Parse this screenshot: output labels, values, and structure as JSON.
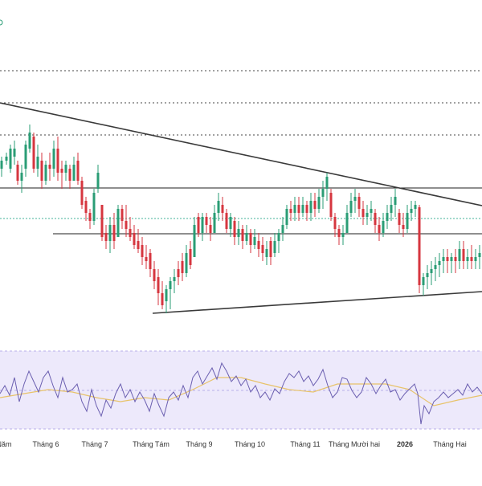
{
  "chart_data": {
    "type": "candlestick",
    "price_range": [
      0,
      600
    ],
    "colors": {
      "up": "#2a9d75",
      "down": "#d6363f",
      "trendline": "#3a3a3a",
      "level": "#1f1f1f",
      "dotted": "#444444",
      "rsi_line": "#6b5fb0",
      "rsi_ma": "#e8c36a",
      "rsi_bg": "#ede9fb",
      "rsi_border": "#b8aee8",
      "teal_dotted": "#44b39a"
    },
    "x_axis": {
      "ticks": [
        {
          "label": "Năm",
          "x": 5,
          "bold": false
        },
        {
          "label": "Tháng 6",
          "x": 57,
          "bold": false
        },
        {
          "label": "Tháng 7",
          "x": 118,
          "bold": false
        },
        {
          "label": "Tháng Tám",
          "x": 188,
          "bold": false
        },
        {
          "label": "Tháng 9",
          "x": 248,
          "bold": false
        },
        {
          "label": "Tháng 10",
          "x": 311,
          "bold": false
        },
        {
          "label": "Tháng 11",
          "x": 380,
          "bold": false
        },
        {
          "label": "Tháng Mười hai",
          "x": 441,
          "bold": false
        },
        {
          "label": "2026",
          "x": 504,
          "bold": true
        },
        {
          "label": "Tháng Hai",
          "x": 560,
          "bold": false
        }
      ]
    },
    "candles": [
      [
        2,
        195,
        220,
        210,
        200
      ],
      [
        8,
        190,
        205,
        200,
        195
      ],
      [
        13,
        180,
        215,
        210,
        185
      ],
      [
        18,
        175,
        205,
        195,
        185
      ],
      [
        22,
        200,
        230,
        205,
        225
      ],
      [
        27,
        205,
        240,
        225,
        215
      ],
      [
        32,
        175,
        220,
        210,
        180
      ],
      [
        37,
        155,
        190,
        185,
        165
      ],
      [
        42,
        165,
        215,
        170,
        210
      ],
      [
        47,
        180,
        220,
        210,
        195
      ],
      [
        52,
        190,
        235,
        200,
        225
      ],
      [
        57,
        200,
        230,
        225,
        205
      ],
      [
        62,
        190,
        225,
        205,
        210
      ],
      [
        67,
        175,
        220,
        210,
        185
      ],
      [
        72,
        170,
        225,
        185,
        215
      ],
      [
        77,
        200,
        235,
        210,
        215
      ],
      [
        82,
        200,
        225,
        215,
        205
      ],
      [
        87,
        205,
        235,
        210,
        225
      ],
      [
        92,
        195,
        225,
        225,
        205
      ],
      [
        97,
        190,
        230,
        200,
        225
      ],
      [
        102,
        220,
        260,
        225,
        255
      ],
      [
        107,
        245,
        275,
        250,
        265
      ],
      [
        112,
        260,
        285,
        265,
        275
      ],
      [
        117,
        235,
        280,
        275,
        240
      ],
      [
        122,
        205,
        240,
        235,
        215
      ],
      [
        127,
        255,
        300,
        255,
        295
      ],
      [
        132,
        280,
        310,
        290,
        300
      ],
      [
        137,
        270,
        315,
        300,
        280
      ],
      [
        142,
        265,
        310,
        280,
        300
      ],
      [
        147,
        255,
        295,
        295,
        260
      ],
      [
        152,
        255,
        285,
        260,
        275
      ],
      [
        157,
        255,
        295,
        275,
        285
      ],
      [
        162,
        270,
        300,
        285,
        295
      ],
      [
        167,
        280,
        310,
        290,
        305
      ],
      [
        172,
        285,
        315,
        300,
        310
      ],
      [
        177,
        295,
        330,
        305,
        320
      ],
      [
        182,
        305,
        335,
        320,
        325
      ],
      [
        187,
        310,
        345,
        315,
        335
      ],
      [
        192,
        325,
        360,
        335,
        350
      ],
      [
        197,
        335,
        380,
        345,
        365
      ],
      [
        202,
        350,
        385,
        365,
        380
      ],
      [
        207,
        355,
        390,
        375,
        360
      ],
      [
        212,
        345,
        385,
        360,
        350
      ],
      [
        217,
        335,
        365,
        350,
        345
      ],
      [
        222,
        325,
        355,
        335,
        345
      ],
      [
        227,
        315,
        350,
        325,
        340
      ],
      [
        232,
        305,
        345,
        340,
        315
      ],
      [
        237,
        300,
        335,
        310,
        330
      ],
      [
        242,
        270,
        320,
        320,
        280
      ],
      [
        247,
        265,
        295,
        270,
        290
      ],
      [
        252,
        265,
        300,
        290,
        270
      ],
      [
        257,
        265,
        290,
        270,
        280
      ],
      [
        262,
        270,
        300,
        280,
        290
      ],
      [
        267,
        255,
        290,
        290,
        265
      ],
      [
        272,
        240,
        275,
        265,
        250
      ],
      [
        277,
        245,
        275,
        255,
        265
      ],
      [
        282,
        260,
        290,
        265,
        285
      ],
      [
        287,
        265,
        295,
        285,
        270
      ],
      [
        292,
        270,
        305,
        275,
        295
      ],
      [
        297,
        275,
        305,
        295,
        285
      ],
      [
        302,
        280,
        310,
        285,
        300
      ],
      [
        307,
        280,
        305,
        300,
        290
      ],
      [
        312,
        285,
        315,
        290,
        305
      ],
      [
        317,
        285,
        310,
        305,
        295
      ],
      [
        322,
        290,
        320,
        300,
        310
      ],
      [
        327,
        295,
        325,
        305,
        315
      ],
      [
        332,
        300,
        330,
        320,
        310
      ],
      [
        337,
        295,
        330,
        300,
        320
      ],
      [
        342,
        290,
        320,
        315,
        300
      ],
      [
        347,
        285,
        315,
        300,
        290
      ],
      [
        352,
        270,
        300,
        290,
        280
      ],
      [
        357,
        255,
        285,
        280,
        260
      ],
      [
        362,
        250,
        275,
        260,
        265
      ],
      [
        367,
        245,
        275,
        265,
        255
      ],
      [
        372,
        245,
        275,
        255,
        265
      ],
      [
        377,
        245,
        270,
        265,
        255
      ],
      [
        382,
        250,
        275,
        255,
        265
      ],
      [
        387,
        240,
        275,
        265,
        250
      ],
      [
        392,
        240,
        270,
        250,
        260
      ],
      [
        397,
        235,
        265,
        260,
        245
      ],
      [
        402,
        225,
        260,
        245,
        235
      ],
      [
        407,
        215,
        250,
        235,
        220
      ],
      [
        412,
        235,
        275,
        240,
        270
      ],
      [
        417,
        265,
        295,
        270,
        285
      ],
      [
        422,
        280,
        305,
        285,
        295
      ],
      [
        427,
        280,
        305,
        295,
        290
      ],
      [
        432,
        255,
        290,
        290,
        265
      ],
      [
        437,
        240,
        270,
        265,
        250
      ],
      [
        442,
        235,
        265,
        250,
        245
      ],
      [
        447,
        240,
        270,
        245,
        260
      ],
      [
        452,
        250,
        280,
        260,
        270
      ],
      [
        457,
        255,
        280,
        270,
        265
      ],
      [
        462,
        250,
        275,
        265,
        260
      ],
      [
        467,
        260,
        290,
        265,
        280
      ],
      [
        472,
        270,
        300,
        280,
        290
      ],
      [
        477,
        265,
        295,
        290,
        275
      ],
      [
        482,
        255,
        285,
        275,
        265
      ],
      [
        487,
        245,
        275,
        265,
        255
      ],
      [
        492,
        235,
        270,
        255,
        245
      ],
      [
        497,
        260,
        290,
        265,
        280
      ],
      [
        502,
        265,
        295,
        280,
        285
      ],
      [
        507,
        255,
        290,
        285,
        265
      ],
      [
        512,
        250,
        275,
        265,
        260
      ],
      [
        517,
        250,
        270,
        260,
        255
      ],
      [
        522,
        255,
        365,
        258,
        355
      ],
      [
        527,
        340,
        368,
        355,
        345
      ],
      [
        532,
        330,
        360,
        345,
        340
      ],
      [
        537,
        325,
        355,
        340,
        335
      ],
      [
        542,
        320,
        350,
        335,
        330
      ],
      [
        547,
        315,
        345,
        330,
        325
      ],
      [
        552,
        310,
        340,
        325,
        320
      ],
      [
        557,
        310,
        340,
        320,
        325
      ],
      [
        562,
        315,
        340,
        325,
        320
      ],
      [
        567,
        310,
        340,
        320,
        325
      ],
      [
        572,
        300,
        335,
        325,
        310
      ],
      [
        577,
        300,
        335,
        310,
        325
      ],
      [
        582,
        310,
        335,
        325,
        320
      ],
      [
        587,
        305,
        335,
        320,
        325
      ],
      [
        592,
        310,
        335,
        325,
        320
      ],
      [
        597,
        305,
        335,
        320,
        315
      ]
    ],
    "rsi": {
      "levels": [
        "upper",
        "middle",
        "lower"
      ],
      "line": [
        [
          0,
          490
        ],
        [
          6,
          480
        ],
        [
          12,
          492
        ],
        [
          18,
          470
        ],
        [
          24,
          500
        ],
        [
          30,
          478
        ],
        [
          36,
          462
        ],
        [
          42,
          475
        ],
        [
          48,
          488
        ],
        [
          54,
          470
        ],
        [
          60,
          462
        ],
        [
          66,
          480
        ],
        [
          72,
          495
        ],
        [
          78,
          470
        ],
        [
          84,
          488
        ],
        [
          90,
          485
        ],
        [
          96,
          478
        ],
        [
          102,
          500
        ],
        [
          108,
          512
        ],
        [
          114,
          485
        ],
        [
          120,
          505
        ],
        [
          126,
          518
        ],
        [
          132,
          498
        ],
        [
          138,
          508
        ],
        [
          144,
          490
        ],
        [
          150,
          478
        ],
        [
          156,
          495
        ],
        [
          162,
          485
        ],
        [
          168,
          500
        ],
        [
          174,
          488
        ],
        [
          180,
          498
        ],
        [
          186,
          512
        ],
        [
          192,
          490
        ],
        [
          198,
          505
        ],
        [
          204,
          518
        ],
        [
          210,
          495
        ],
        [
          216,
          488
        ],
        [
          222,
          498
        ],
        [
          228,
          480
        ],
        [
          234,
          495
        ],
        [
          240,
          470
        ],
        [
          246,
          462
        ],
        [
          252,
          478
        ],
        [
          258,
          468
        ],
        [
          264,
          458
        ],
        [
          270,
          472
        ],
        [
          276,
          452
        ],
        [
          282,
          462
        ],
        [
          288,
          475
        ],
        [
          294,
          468
        ],
        [
          300,
          480
        ],
        [
          306,
          472
        ],
        [
          312,
          488
        ],
        [
          318,
          480
        ],
        [
          324,
          495
        ],
        [
          330,
          488
        ],
        [
          336,
          498
        ],
        [
          342,
          484
        ],
        [
          348,
          490
        ],
        [
          354,
          475
        ],
        [
          360,
          465
        ],
        [
          366,
          470
        ],
        [
          372,
          462
        ],
        [
          378,
          475
        ],
        [
          384,
          468
        ],
        [
          390,
          480
        ],
        [
          396,
          472
        ],
        [
          402,
          460
        ],
        [
          408,
          480
        ],
        [
          414,
          495
        ],
        [
          420,
          488
        ],
        [
          426,
          470
        ],
        [
          432,
          472
        ],
        [
          438,
          486
        ],
        [
          444,
          495
        ],
        [
          450,
          488
        ],
        [
          456,
          470
        ],
        [
          462,
          478
        ],
        [
          468,
          490
        ],
        [
          474,
          480
        ],
        [
          480,
          472
        ],
        [
          486,
          488
        ],
        [
          492,
          485
        ],
        [
          498,
          498
        ],
        [
          504,
          490
        ],
        [
          510,
          484
        ],
        [
          516,
          478
        ],
        [
          520,
          490
        ],
        [
          524,
          528
        ],
        [
          528,
          505
        ],
        [
          534,
          515
        ],
        [
          540,
          500
        ],
        [
          546,
          495
        ],
        [
          552,
          488
        ],
        [
          558,
          495
        ],
        [
          564,
          490
        ],
        [
          570,
          485
        ],
        [
          576,
          492
        ],
        [
          582,
          478
        ],
        [
          588,
          488
        ],
        [
          594,
          482
        ],
        [
          600,
          490
        ]
      ],
      "ma": [
        [
          0,
          495
        ],
        [
          30,
          490
        ],
        [
          60,
          485
        ],
        [
          90,
          488
        ],
        [
          120,
          495
        ],
        [
          150,
          500
        ],
        [
          180,
          495
        ],
        [
          210,
          498
        ],
        [
          240,
          485
        ],
        [
          270,
          470
        ],
        [
          300,
          470
        ],
        [
          330,
          478
        ],
        [
          360,
          485
        ],
        [
          390,
          488
        ],
        [
          420,
          478
        ],
        [
          450,
          478
        ],
        [
          480,
          478
        ],
        [
          510,
          485
        ],
        [
          540,
          505
        ],
        [
          570,
          498
        ],
        [
          600,
          492
        ]
      ]
    }
  }
}
